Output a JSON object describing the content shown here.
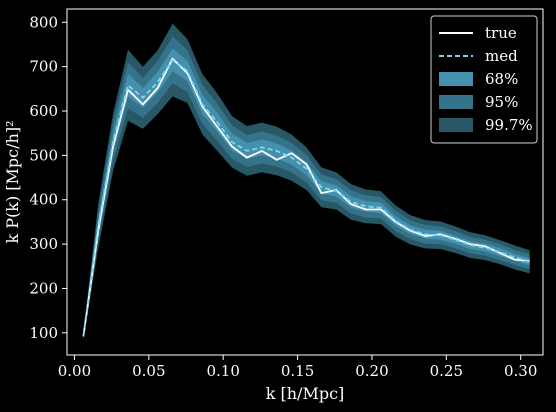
{
  "chart_data": {
    "type": "line",
    "xlabel": "k [h/Mpc]",
    "ylabel": "k P(k) [Mpc/h]²",
    "xlim": [
      -0.005,
      0.315
    ],
    "ylim": [
      50,
      830
    ],
    "xticks": [
      0.0,
      0.05,
      0.1,
      0.15,
      0.2,
      0.25,
      0.3
    ],
    "xtick_labels": [
      "0.00",
      "0.05",
      "0.10",
      "0.15",
      "0.20",
      "0.25",
      "0.30"
    ],
    "yticks": [
      100,
      200,
      300,
      400,
      500,
      600,
      700,
      800
    ],
    "ytick_labels": [
      "100",
      "200",
      "300",
      "400",
      "500",
      "600",
      "700",
      "800"
    ],
    "grid": false,
    "legend_position": "top-right",
    "legend": [
      "true",
      "med",
      "68%",
      "95%",
      "99.7%"
    ],
    "x": [
      0.006,
      0.016,
      0.026,
      0.036,
      0.046,
      0.056,
      0.066,
      0.076,
      0.086,
      0.096,
      0.106,
      0.116,
      0.126,
      0.136,
      0.146,
      0.156,
      0.166,
      0.176,
      0.186,
      0.196,
      0.206,
      0.216,
      0.226,
      0.236,
      0.246,
      0.256,
      0.266,
      0.276,
      0.286,
      0.296,
      0.306
    ],
    "series": [
      {
        "name": "true",
        "style": "solid",
        "color": "#ffffff",
        "values": [
          92,
          330,
          520,
          648,
          615,
          652,
          718,
          685,
          610,
          565,
          520,
          495,
          510,
          490,
          505,
          480,
          415,
          422,
          390,
          378,
          378,
          350,
          330,
          318,
          322,
          312,
          300,
          295,
          280,
          265,
          262
        ]
      },
      {
        "name": "med",
        "style": "dashed",
        "color": "#7ed8f0",
        "values": [
          93,
          340,
          530,
          658,
          630,
          665,
          715,
          690,
          615,
          575,
          530,
          510,
          518,
          510,
          495,
          470,
          428,
          420,
          395,
          385,
          382,
          352,
          332,
          322,
          320,
          310,
          298,
          292,
          282,
          270,
          260
        ]
      }
    ],
    "bands": [
      {
        "name": "99.7%",
        "color": "#285766",
        "half_width": [
          8,
          50,
          65,
          80,
          70,
          72,
          82,
          72,
          68,
          65,
          58,
          56,
          56,
          55,
          52,
          48,
          45,
          42,
          40,
          38,
          37,
          35,
          33,
          32,
          31,
          30,
          29,
          28,
          27,
          27,
          26
        ]
      },
      {
        "name": "95%",
        "color": "#34738a",
        "half_width": [
          5,
          32,
          42,
          52,
          45,
          47,
          53,
          47,
          44,
          42,
          38,
          36,
          36,
          35,
          33,
          31,
          29,
          27,
          26,
          25,
          24,
          23,
          21,
          21,
          20,
          19,
          19,
          18,
          18,
          17,
          17
        ]
      },
      {
        "name": "68%",
        "color": "#4590ad",
        "half_width": [
          3,
          16,
          21,
          26,
          22,
          23,
          26,
          23,
          22,
          21,
          19,
          18,
          18,
          17,
          16,
          15,
          14,
          13,
          13,
          12,
          12,
          11,
          10,
          10,
          10,
          9,
          9,
          9,
          9,
          8,
          8
        ]
      }
    ]
  }
}
